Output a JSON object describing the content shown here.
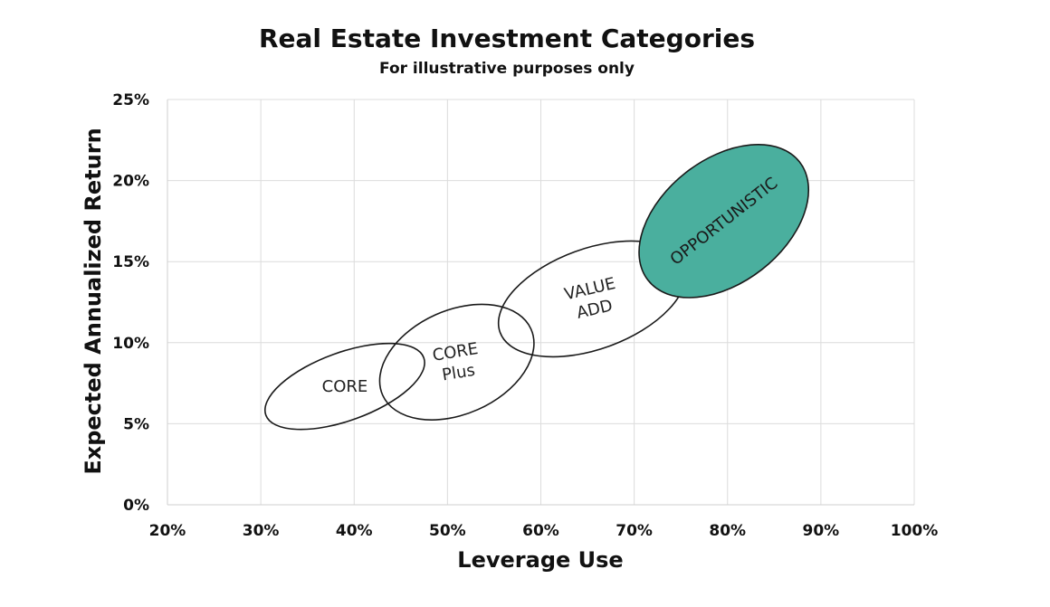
{
  "chart_data": {
    "type": "scatter",
    "title": "Real Estate Investment Categories",
    "subtitle": "For illustrative purposes only",
    "xlabel": "Leverage Use",
    "ylabel": "Expected Annualized Return",
    "xlim": [
      20,
      100
    ],
    "ylim": [
      0,
      25
    ],
    "x_ticks": [
      "20%",
      "30%",
      "40%",
      "50%",
      "60%",
      "70%",
      "80%",
      "90%",
      "100%"
    ],
    "y_ticks": [
      "0%",
      "5%",
      "10%",
      "15%",
      "20%",
      "25%"
    ],
    "grid": true,
    "legend": "none",
    "categories": [
      {
        "label_lines": [
          "CORE"
        ],
        "x_center": 39,
        "y_center": 7.3,
        "x_radius": 9,
        "y_radius": 2.1,
        "angle_deg": -20,
        "text_angle_deg": 0,
        "filled": false
      },
      {
        "label_lines": [
          "CORE",
          "Plus"
        ],
        "x_center": 51,
        "y_center": 8.8,
        "x_radius": 8.7,
        "y_radius": 3.2,
        "angle_deg": -24,
        "text_angle_deg": -9,
        "filled": false
      },
      {
        "label_lines": [
          "VALUE",
          "ADD"
        ],
        "x_center": 65.5,
        "y_center": 12.7,
        "x_radius": 10.5,
        "y_radius": 3.1,
        "angle_deg": -20,
        "text_angle_deg": -13,
        "filled": false
      },
      {
        "label_lines": [
          "OPPORTUNISTIC"
        ],
        "x_center": 79.6,
        "y_center": 17.5,
        "x_radius": 10.3,
        "y_radius": 3.8,
        "angle_deg": -38,
        "text_angle_deg": -38,
        "filled": true
      }
    ],
    "colors": {
      "fill": "#4aaf9e",
      "stroke": "#1a1a1a",
      "grid": "#dcdcdc",
      "text": "#111111",
      "label": "#222222"
    }
  }
}
